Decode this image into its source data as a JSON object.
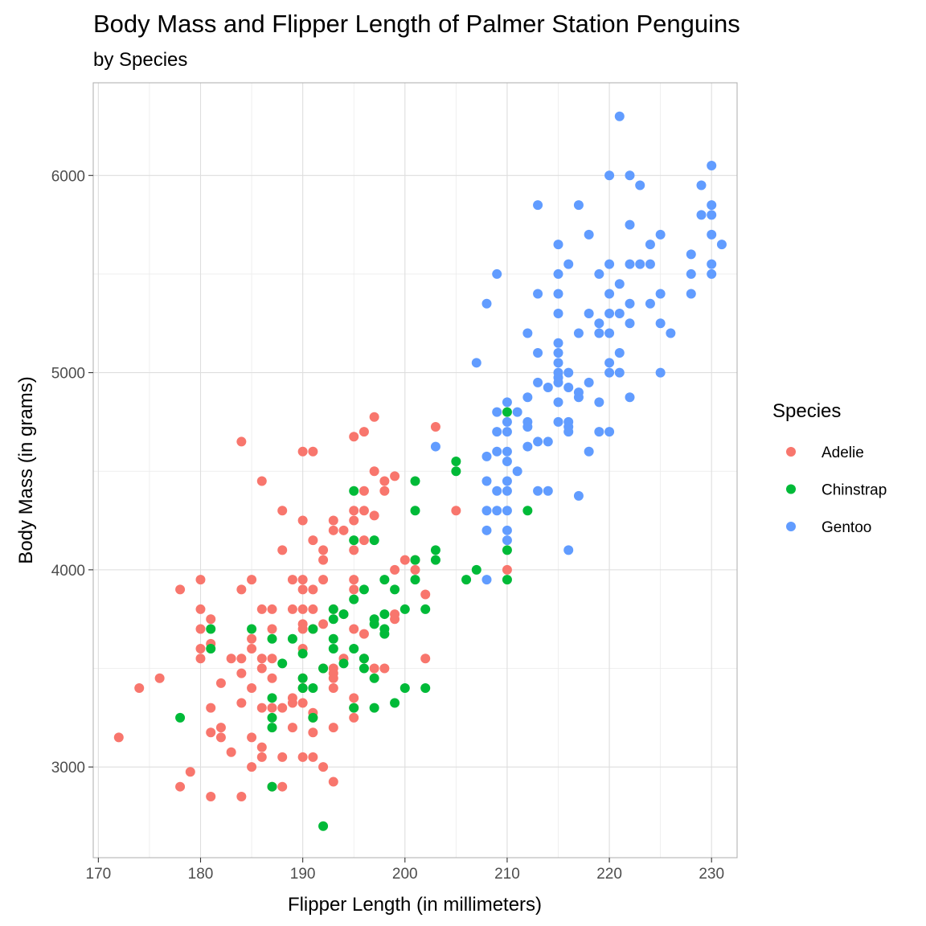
{
  "chart_data": {
    "type": "scatter",
    "title": "Body Mass and Flipper Length of Palmer Station Penguins",
    "subtitle": "by Species",
    "xlabel": "Flipper Length (in millimeters)",
    "ylabel": "Body Mass (in grams)",
    "xlim": [
      169.5,
      232.5
    ],
    "ylim": [
      2540,
      6470
    ],
    "x_ticks": [
      170,
      180,
      190,
      200,
      210,
      220,
      230
    ],
    "y_ticks": [
      3000,
      4000,
      5000,
      6000
    ],
    "x_tick_labels": [
      "170",
      "180",
      "190",
      "200",
      "210",
      "220",
      "230"
    ],
    "y_tick_labels": [
      "3000",
      "4000",
      "5000",
      "6000"
    ],
    "grid": true,
    "legend": {
      "title": "Species",
      "position": "right"
    },
    "series": [
      {
        "name": "Adelie",
        "color": "#F8766D",
        "points": [
          [
            172,
            3150
          ],
          [
            174,
            3400
          ],
          [
            176,
            3450
          ],
          [
            178,
            3900
          ],
          [
            178,
            2900
          ],
          [
            179,
            2975
          ],
          [
            180,
            3950
          ],
          [
            180,
            3800
          ],
          [
            180,
            3700
          ],
          [
            180,
            3600
          ],
          [
            180,
            3550
          ],
          [
            181,
            3750
          ],
          [
            181,
            3625
          ],
          [
            181,
            3300
          ],
          [
            181,
            3175
          ],
          [
            181,
            2850
          ],
          [
            182,
            3200
          ],
          [
            182,
            3150
          ],
          [
            182,
            3425
          ],
          [
            183,
            3550
          ],
          [
            183,
            3075
          ],
          [
            184,
            4650
          ],
          [
            184,
            3900
          ],
          [
            184,
            3550
          ],
          [
            184,
            3475
          ],
          [
            184,
            3325
          ],
          [
            184,
            2850
          ],
          [
            185,
            3950
          ],
          [
            185,
            3650
          ],
          [
            185,
            3600
          ],
          [
            185,
            3400
          ],
          [
            185,
            3150
          ],
          [
            185,
            3000
          ],
          [
            186,
            4450
          ],
          [
            186,
            3800
          ],
          [
            186,
            3550
          ],
          [
            186,
            3500
          ],
          [
            186,
            3300
          ],
          [
            186,
            3100
          ],
          [
            186,
            3050
          ],
          [
            187,
            3800
          ],
          [
            187,
            3700
          ],
          [
            187,
            3550
          ],
          [
            187,
            3450
          ],
          [
            187,
            3300
          ],
          [
            187,
            2900
          ],
          [
            188,
            4300
          ],
          [
            188,
            4100
          ],
          [
            188,
            3300
          ],
          [
            188,
            3050
          ],
          [
            188,
            2900
          ],
          [
            189,
            3950
          ],
          [
            189,
            3800
          ],
          [
            189,
            3350
          ],
          [
            189,
            3325
          ],
          [
            189,
            3200
          ],
          [
            190,
            4600
          ],
          [
            190,
            4250
          ],
          [
            190,
            3950
          ],
          [
            190,
            3900
          ],
          [
            190,
            3800
          ],
          [
            190,
            3725
          ],
          [
            190,
            3700
          ],
          [
            190,
            3600
          ],
          [
            190,
            3450
          ],
          [
            190,
            3400
          ],
          [
            190,
            3325
          ],
          [
            190,
            3050
          ],
          [
            191,
            4600
          ],
          [
            191,
            4150
          ],
          [
            191,
            3900
          ],
          [
            191,
            3800
          ],
          [
            191,
            3700
          ],
          [
            191,
            3275
          ],
          [
            191,
            3250
          ],
          [
            191,
            3175
          ],
          [
            191,
            3050
          ],
          [
            192,
            4100
          ],
          [
            192,
            4050
          ],
          [
            192,
            3950
          ],
          [
            192,
            3725
          ],
          [
            192,
            3500
          ],
          [
            192,
            3000
          ],
          [
            193,
            4250
          ],
          [
            193,
            4200
          ],
          [
            193,
            3800
          ],
          [
            193,
            3500
          ],
          [
            193,
            3475
          ],
          [
            193,
            3450
          ],
          [
            193,
            3400
          ],
          [
            193,
            3200
          ],
          [
            193,
            2925
          ],
          [
            194,
            4200
          ],
          [
            194,
            3775
          ],
          [
            194,
            3550
          ],
          [
            195,
            4675
          ],
          [
            195,
            4300
          ],
          [
            195,
            4250
          ],
          [
            195,
            4100
          ],
          [
            195,
            3950
          ],
          [
            195,
            3900
          ],
          [
            195,
            3700
          ],
          [
            195,
            3350
          ],
          [
            195,
            3300
          ],
          [
            195,
            3250
          ],
          [
            196,
            4700
          ],
          [
            196,
            4400
          ],
          [
            196,
            4300
          ],
          [
            196,
            4150
          ],
          [
            196,
            3675
          ],
          [
            196,
            3550
          ],
          [
            197,
            4775
          ],
          [
            197,
            4500
          ],
          [
            197,
            4275
          ],
          [
            197,
            3500
          ],
          [
            198,
            4450
          ],
          [
            198,
            4400
          ],
          [
            198,
            3500
          ],
          [
            199,
            4475
          ],
          [
            199,
            4000
          ],
          [
            199,
            3775
          ],
          [
            199,
            3750
          ],
          [
            200,
            4050
          ],
          [
            201,
            4050
          ],
          [
            201,
            4000
          ],
          [
            202,
            3875
          ],
          [
            202,
            3550
          ],
          [
            203,
            4725
          ],
          [
            205,
            4300
          ],
          [
            210,
            4000
          ]
        ]
      },
      {
        "name": "Chinstrap",
        "color": "#00BA38",
        "points": [
          [
            178,
            3250
          ],
          [
            181,
            3700
          ],
          [
            181,
            3600
          ],
          [
            185,
            3700
          ],
          [
            187,
            3650
          ],
          [
            187,
            3350
          ],
          [
            187,
            3250
          ],
          [
            187,
            3200
          ],
          [
            187,
            2900
          ],
          [
            188,
            3525
          ],
          [
            189,
            3650
          ],
          [
            190,
            3575
          ],
          [
            190,
            3450
          ],
          [
            190,
            3400
          ],
          [
            191,
            3700
          ],
          [
            191,
            3400
          ],
          [
            191,
            3250
          ],
          [
            192,
            3500
          ],
          [
            192,
            2700
          ],
          [
            193,
            3800
          ],
          [
            193,
            3750
          ],
          [
            193,
            3650
          ],
          [
            193,
            3600
          ],
          [
            194,
            3775
          ],
          [
            194,
            3525
          ],
          [
            195,
            4400
          ],
          [
            195,
            4150
          ],
          [
            195,
            3850
          ],
          [
            195,
            3600
          ],
          [
            195,
            3300
          ],
          [
            196,
            3900
          ],
          [
            196,
            3550
          ],
          [
            196,
            3500
          ],
          [
            197,
            4150
          ],
          [
            197,
            3750
          ],
          [
            197,
            3725
          ],
          [
            197,
            3450
          ],
          [
            197,
            3300
          ],
          [
            198,
            3950
          ],
          [
            198,
            3775
          ],
          [
            198,
            3700
          ],
          [
            198,
            3675
          ],
          [
            199,
            3900
          ],
          [
            199,
            3325
          ],
          [
            200,
            3800
          ],
          [
            200,
            3400
          ],
          [
            201,
            4450
          ],
          [
            201,
            4300
          ],
          [
            201,
            4050
          ],
          [
            201,
            3950
          ],
          [
            202,
            3800
          ],
          [
            202,
            3400
          ],
          [
            203,
            4100
          ],
          [
            203,
            4050
          ],
          [
            205,
            4550
          ],
          [
            205,
            4500
          ],
          [
            206,
            3950
          ],
          [
            207,
            4000
          ],
          [
            210,
            4800
          ],
          [
            210,
            4100
          ],
          [
            210,
            3950
          ],
          [
            212,
            4300
          ]
        ]
      },
      {
        "name": "Gentoo",
        "color": "#619CFF",
        "points": [
          [
            203,
            4625
          ],
          [
            207,
            5050
          ],
          [
            208,
            5350
          ],
          [
            208,
            4575
          ],
          [
            208,
            4450
          ],
          [
            208,
            4300
          ],
          [
            208,
            4200
          ],
          [
            208,
            3950
          ],
          [
            209,
            5500
          ],
          [
            209,
            4800
          ],
          [
            209,
            4700
          ],
          [
            209,
            4600
          ],
          [
            209,
            4400
          ],
          [
            209,
            4300
          ],
          [
            210,
            4850
          ],
          [
            210,
            4750
          ],
          [
            210,
            4700
          ],
          [
            210,
            4600
          ],
          [
            210,
            4550
          ],
          [
            210,
            4450
          ],
          [
            210,
            4400
          ],
          [
            210,
            4300
          ],
          [
            210,
            4200
          ],
          [
            210,
            4150
          ],
          [
            211,
            4800
          ],
          [
            211,
            4500
          ],
          [
            212,
            5200
          ],
          [
            212,
            4875
          ],
          [
            212,
            4750
          ],
          [
            212,
            4725
          ],
          [
            212,
            4625
          ],
          [
            213,
            5850
          ],
          [
            213,
            5400
          ],
          [
            213,
            5100
          ],
          [
            213,
            4950
          ],
          [
            213,
            4650
          ],
          [
            213,
            4400
          ],
          [
            214,
            4925
          ],
          [
            214,
            4650
          ],
          [
            214,
            4400
          ],
          [
            215,
            5650
          ],
          [
            215,
            5500
          ],
          [
            215,
            5400
          ],
          [
            215,
            5300
          ],
          [
            215,
            5150
          ],
          [
            215,
            5100
          ],
          [
            215,
            5050
          ],
          [
            215,
            5000
          ],
          [
            215,
            4975
          ],
          [
            215,
            4950
          ],
          [
            215,
            4850
          ],
          [
            215,
            4750
          ],
          [
            216,
            5550
          ],
          [
            216,
            5000
          ],
          [
            216,
            4925
          ],
          [
            216,
            4750
          ],
          [
            216,
            4725
          ],
          [
            216,
            4700
          ],
          [
            216,
            4100
          ],
          [
            217,
            5850
          ],
          [
            217,
            5200
          ],
          [
            217,
            4900
          ],
          [
            217,
            4875
          ],
          [
            217,
            4375
          ],
          [
            218,
            5700
          ],
          [
            218,
            5300
          ],
          [
            218,
            4950
          ],
          [
            218,
            4600
          ],
          [
            219,
            5500
          ],
          [
            219,
            5250
          ],
          [
            219,
            5200
          ],
          [
            219,
            4850
          ],
          [
            219,
            4700
          ],
          [
            220,
            6000
          ],
          [
            220,
            5550
          ],
          [
            220,
            5400
          ],
          [
            220,
            5300
          ],
          [
            220,
            5200
          ],
          [
            220,
            5050
          ],
          [
            220,
            5000
          ],
          [
            220,
            4700
          ],
          [
            221,
            6300
          ],
          [
            221,
            5450
          ],
          [
            221,
            5300
          ],
          [
            221,
            5100
          ],
          [
            221,
            5000
          ],
          [
            222,
            6000
          ],
          [
            222,
            5750
          ],
          [
            222,
            5550
          ],
          [
            222,
            5350
          ],
          [
            222,
            5250
          ],
          [
            222,
            4875
          ],
          [
            223,
            5950
          ],
          [
            223,
            5550
          ],
          [
            224,
            5650
          ],
          [
            224,
            5550
          ],
          [
            224,
            5350
          ],
          [
            225,
            5700
          ],
          [
            225,
            5400
          ],
          [
            225,
            5250
          ],
          [
            225,
            5000
          ],
          [
            226,
            5200
          ],
          [
            228,
            5600
          ],
          [
            228,
            5500
          ],
          [
            228,
            5400
          ],
          [
            229,
            5950
          ],
          [
            229,
            5800
          ],
          [
            230,
            6050
          ],
          [
            230,
            5850
          ],
          [
            230,
            5800
          ],
          [
            230,
            5700
          ],
          [
            230,
            5550
          ],
          [
            230,
            5500
          ],
          [
            231,
            5650
          ]
        ]
      }
    ]
  }
}
